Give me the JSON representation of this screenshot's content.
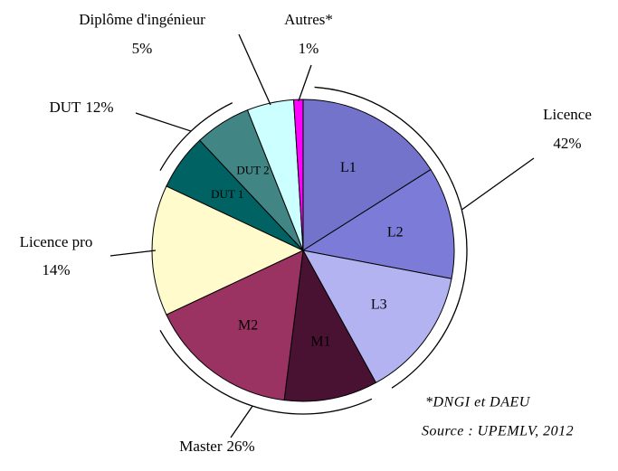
{
  "chart_data": {
    "type": "pie",
    "categories": [
      "L1",
      "L2",
      "L3",
      "M1",
      "M2",
      null,
      "DUT 1",
      "DUT 2",
      null,
      null
    ],
    "values": [
      16,
      12,
      14,
      10,
      16,
      14,
      6,
      6,
      5,
      1
    ],
    "colors": [
      "#7373cc",
      "#7c7cd8",
      "#b3b3f2",
      "#4a1232",
      "#9a3262",
      "#fffbcc",
      "#006262",
      "#428585",
      "#ccffff",
      "#ff00ff"
    ],
    "groups": [
      {
        "name": "Licence",
        "value": 42,
        "value_label": "42%",
        "bracket": true
      },
      {
        "name": "Master",
        "value": 26,
        "value_label": "26%",
        "bracket": true
      },
      {
        "name": "Licence pro",
        "value": 14,
        "value_label": "14%",
        "bracket": false
      },
      {
        "name": "DUT",
        "value": 12,
        "value_label": "12%",
        "bracket": true
      },
      {
        "name": "Diplôme d'ingénieur",
        "value": 5,
        "value_label": "5%",
        "bracket": false
      },
      {
        "name": "Autres*",
        "value": 1,
        "value_label": "1%",
        "bracket": false
      }
    ],
    "annotations": [
      "*DNGI et DAEU",
      "Source : UPEMLV, 2012"
    ]
  }
}
